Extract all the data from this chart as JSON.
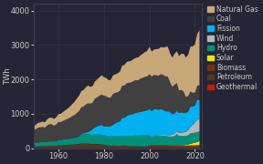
{
  "ylabel": "TWh",
  "background_color": "#252535",
  "plot_bg_color": "#252535",
  "grid_color": "#3d3d52",
  "text_color": "#cccccc",
  "xlim": [
    1949,
    2023
  ],
  "ylim": [
    0,
    4200
  ],
  "yticks": [
    0,
    1000,
    2000,
    3000,
    4000
  ],
  "xticks": [
    1960,
    1980,
    2000,
    2020
  ],
  "years": [
    1949,
    1950,
    1951,
    1952,
    1953,
    1954,
    1955,
    1956,
    1957,
    1958,
    1959,
    1960,
    1961,
    1962,
    1963,
    1964,
    1965,
    1966,
    1967,
    1968,
    1969,
    1970,
    1971,
    1972,
    1973,
    1974,
    1975,
    1976,
    1977,
    1978,
    1979,
    1980,
    1981,
    1982,
    1983,
    1984,
    1985,
    1986,
    1987,
    1988,
    1989,
    1990,
    1991,
    1992,
    1993,
    1994,
    1995,
    1996,
    1997,
    1998,
    1999,
    2000,
    2001,
    2002,
    2003,
    2004,
    2005,
    2006,
    2007,
    2008,
    2009,
    2010,
    2011,
    2012,
    2013,
    2014,
    2015,
    2016,
    2017,
    2018,
    2019,
    2020,
    2021,
    2022
  ],
  "series": {
    "Geothermal": [
      0,
      0,
      0,
      0,
      0,
      0,
      0,
      0,
      0,
      0,
      0,
      0,
      0,
      0,
      0,
      0,
      0,
      0,
      0,
      0,
      0,
      0,
      0,
      0,
      0,
      0,
      0,
      0,
      0,
      0,
      0,
      3,
      3,
      3,
      4,
      4,
      5,
      5,
      5,
      5,
      5,
      5,
      5,
      5,
      5,
      5,
      5,
      5,
      5,
      5,
      5,
      5,
      5,
      5,
      5,
      5,
      5,
      5,
      5,
      5,
      5,
      5,
      5,
      5,
      5,
      5,
      5,
      5,
      5,
      5,
      5,
      5,
      5,
      5
    ],
    "Petroleum": [
      40,
      45,
      50,
      52,
      55,
      50,
      60,
      65,
      70,
      65,
      70,
      80,
      80,
      85,
      88,
      90,
      95,
      100,
      105,
      110,
      115,
      130,
      130,
      125,
      125,
      115,
      110,
      115,
      110,
      108,
      100,
      90,
      75,
      65,
      58,
      58,
      55,
      50,
      50,
      55,
      55,
      50,
      45,
      38,
      38,
      38,
      34,
      34,
      30,
      30,
      30,
      30,
      27,
      24,
      24,
      24,
      22,
      22,
      22,
      20,
      18,
      18,
      14,
      14,
      14,
      14,
      10,
      10,
      10,
      10,
      10,
      10,
      10,
      10
    ],
    "Biomass": [
      5,
      5,
      6,
      6,
      6,
      6,
      7,
      7,
      7,
      7,
      7,
      8,
      8,
      8,
      8,
      9,
      9,
      9,
      9,
      10,
      10,
      10,
      10,
      10,
      11,
      11,
      11,
      12,
      12,
      13,
      13,
      13,
      12,
      12,
      12,
      13,
      14,
      14,
      15,
      15,
      16,
      16,
      16,
      16,
      16,
      17,
      17,
      17,
      17,
      17,
      17,
      55,
      57,
      58,
      59,
      60,
      61,
      60,
      60,
      58,
      55,
      55,
      57,
      58,
      60,
      62,
      63,
      63,
      65,
      67,
      70,
      72,
      75,
      78
    ],
    "Solar": [
      0,
      0,
      0,
      0,
      0,
      0,
      0,
      0,
      0,
      0,
      0,
      0,
      0,
      0,
      0,
      0,
      0,
      0,
      0,
      0,
      0,
      0,
      0,
      0,
      0,
      0,
      0,
      0,
      0,
      0,
      0,
      0,
      0,
      0,
      0,
      0,
      0,
      0,
      0,
      0,
      0,
      0,
      0,
      0,
      0,
      0,
      0,
      0,
      0,
      0,
      0,
      0,
      0,
      0,
      0,
      0,
      0,
      0,
      0,
      0,
      0,
      1,
      2,
      4,
      6,
      8,
      11,
      18,
      28,
      45,
      60,
      73,
      90,
      115
    ],
    "Hydro": [
      100,
      108,
      112,
      118,
      115,
      118,
      122,
      125,
      122,
      125,
      128,
      155,
      158,
      162,
      165,
      168,
      174,
      178,
      176,
      182,
      188,
      258,
      263,
      278,
      278,
      273,
      268,
      278,
      273,
      278,
      283,
      275,
      268,
      263,
      268,
      278,
      272,
      278,
      272,
      278,
      278,
      288,
      293,
      298,
      303,
      308,
      313,
      318,
      323,
      328,
      323,
      283,
      222,
      268,
      278,
      273,
      278,
      273,
      268,
      263,
      258,
      263,
      273,
      328,
      273,
      268,
      263,
      258,
      268,
      303,
      298,
      293,
      288,
      273
    ],
    "Wind": [
      0,
      0,
      0,
      0,
      0,
      0,
      0,
      0,
      0,
      0,
      0,
      0,
      0,
      0,
      0,
      0,
      0,
      0,
      0,
      0,
      0,
      0,
      0,
      0,
      0,
      0,
      0,
      0,
      0,
      0,
      0,
      0,
      0,
      0,
      0,
      0,
      0,
      0,
      0,
      0,
      0,
      0,
      0,
      0,
      0,
      0,
      3,
      4,
      5,
      6,
      8,
      11,
      13,
      15,
      16,
      18,
      20,
      25,
      30,
      35,
      40,
      55,
      70,
      80,
      90,
      100,
      110,
      120,
      145,
      190,
      230,
      295,
      360,
      380
    ],
    "Fission": [
      0,
      0,
      0,
      0,
      0,
      0,
      0,
      0,
      0,
      0,
      0,
      0,
      0,
      0,
      0,
      3,
      5,
      8,
      10,
      15,
      20,
      22,
      30,
      40,
      60,
      100,
      170,
      200,
      240,
      270,
      280,
      250,
      280,
      280,
      300,
      330,
      380,
      410,
      440,
      530,
      530,
      580,
      610,
      620,
      640,
      660,
      670,
      680,
      690,
      700,
      720,
      750,
      760,
      770,
      750,
      740,
      750,
      730,
      690,
      690,
      690,
      590,
      590,
      590,
      580,
      590,
      560,
      550,
      550,
      590,
      550,
      490,
      590,
      540
    ],
    "Coal": [
      370,
      398,
      430,
      430,
      445,
      420,
      475,
      505,
      498,
      458,
      485,
      520,
      514,
      540,
      565,
      585,
      605,
      638,
      664,
      704,
      742,
      768,
      781,
      821,
      834,
      795,
      769,
      834,
      847,
      859,
      885,
      895,
      872,
      845,
      834,
      898,
      884,
      872,
      885,
      937,
      937,
      951,
      937,
      937,
      951,
      951,
      937,
      963,
      976,
      989,
      989,
      1016,
      1002,
      989,
      989,
      989,
      1016,
      1016,
      1016,
      1016,
      860,
      800,
      833,
      820,
      650,
      650,
      625,
      468,
      442,
      442,
      390,
      377,
      403,
      430
    ],
    "Natural Gas": [
      115,
      125,
      140,
      145,
      155,
      158,
      175,
      185,
      190,
      195,
      210,
      230,
      240,
      260,
      280,
      300,
      320,
      350,
      380,
      420,
      450,
      470,
      480,
      500,
      510,
      490,
      480,
      500,
      520,
      540,
      560,
      540,
      530,
      510,
      510,
      540,
      540,
      550,
      560,
      580,
      600,
      620,
      620,
      630,
      640,
      650,
      660,
      680,
      700,
      720,
      740,
      800,
      720,
      740,
      760,
      780,
      790,
      800,
      850,
      870,
      850,
      850,
      900,
      920,
      1000,
      1050,
      1100,
      1150,
      1200,
      1300,
      1350,
      1400,
      1500,
      1600
    ]
  },
  "colors": {
    "Natural Gas": "#c8a878",
    "Coal": "#404040",
    "Fission": "#00b0f0",
    "Wind": "#b0b8c0",
    "Hydro": "#00907a",
    "Solar": "#e8e800",
    "Biomass": "#7a3010",
    "Petroleum": "#503820",
    "Geothermal": "#cc1800"
  },
  "legend_order": [
    "Natural Gas",
    "Coal",
    "Fission",
    "Wind",
    "Hydro",
    "Solar",
    "Biomass",
    "Petroleum",
    "Geothermal"
  ],
  "legend_fontsize": 5.5,
  "label_fontsize": 6,
  "tick_fontsize": 6
}
